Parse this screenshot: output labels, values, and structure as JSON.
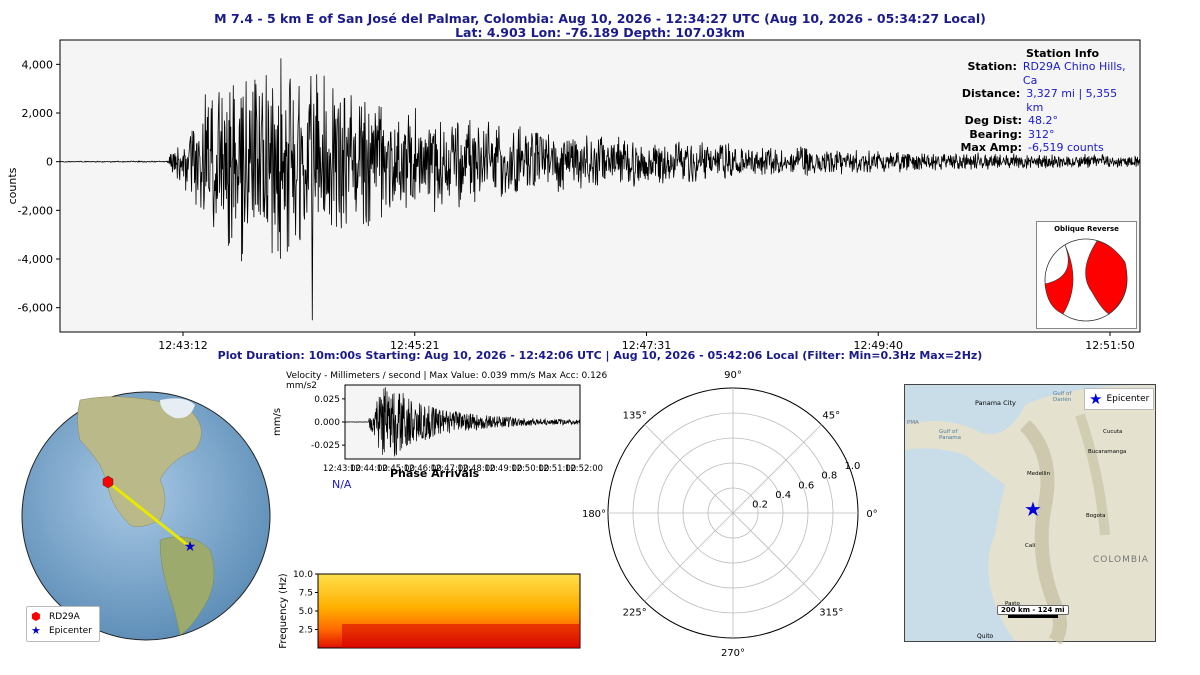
{
  "header": {
    "title_line1": "M 7.4 - 5 km E of San José del Palmar, Colombia:  Aug 10, 2026 - 12:34:27 UTC (Aug 10, 2026 - 05:34:27 Local)",
    "title_line2": "Lat: 4.903 Lon: -76.189 Depth: 107.03km"
  },
  "plot_info": "Plot Duration: 10m:00s  Starting: Aug 10, 2026 - 12:42:06 UTC | Aug 10, 2026 - 05:42:06 Local   (Filter:  Min=0.3Hz  Max=2Hz)",
  "station_info": {
    "heading": "Station Info",
    "rows": [
      {
        "label": "Station:",
        "value": "RD29A Chino Hills, Ca"
      },
      {
        "label": "Distance:",
        "value": "3,327 mi | 5,355 km"
      },
      {
        "label": "Deg Dist:",
        "value": "48.2°"
      },
      {
        "label": "Bearing:",
        "value": "312°"
      },
      {
        "label": "Max Amp:",
        "value": "-6,519 counts"
      }
    ]
  },
  "focal_mechanism": {
    "title": "Oblique Reverse",
    "fill_color": "#ff0000"
  },
  "colors": {
    "trace": "#000000",
    "title": "#1a1a8c",
    "value": "#1a1acc",
    "plot_bg": "#f5f5f5"
  },
  "chart_data": [
    {
      "type": "line",
      "title": "",
      "xlabel": "",
      "ylabel": "counts",
      "x_tick_labels": [
        "12:43:12",
        "12:45:21",
        "12:47:31",
        "12:49:40",
        "12:51:50"
      ],
      "y_tick_labels": [
        "4,000",
        "2,000",
        "0",
        "-2,000",
        "-4,000",
        "-6,000"
      ],
      "ylim": [
        -7000,
        5000
      ],
      "x_range_seconds": [
        0,
        600
      ],
      "series": [
        {
          "envelope": [
            {
              "t": 0,
              "amp": 25
            },
            {
              "t": 60,
              "amp": 30
            },
            {
              "t": 62,
              "amp": 700
            },
            {
              "t": 75,
              "amp": 2200
            },
            {
              "t": 95,
              "amp": 4600
            },
            {
              "t": 120,
              "amp": 4700
            },
            {
              "t": 150,
              "amp": 3800
            },
            {
              "t": 180,
              "amp": 2800
            },
            {
              "t": 240,
              "amp": 1800
            },
            {
              "t": 300,
              "amp": 1200
            },
            {
              "t": 360,
              "amp": 900
            },
            {
              "t": 420,
              "amp": 650
            },
            {
              "t": 480,
              "amp": 450
            },
            {
              "t": 540,
              "amp": 350
            },
            {
              "t": 600,
              "amp": 300
            }
          ],
          "min_value": -6519
        }
      ]
    },
    {
      "type": "line",
      "title": "Velocity - Millimeters / second | Max Value: 0.039 mm/s Max Acc: 0.126 mm/s2",
      "ylabel": "mm/s",
      "xlabel": "Phase Arrivals",
      "x_tick_labels": [
        "12:43:00",
        "12:44:00",
        "12:45:00",
        "12:46:00",
        "12:47:00",
        "12:48:00",
        "12:49:00",
        "12:50:00",
        "12:51:00",
        "12:52:00"
      ],
      "y_tick_labels": [
        "0.025",
        "0.000",
        "-0.025"
      ],
      "ylim": [
        -0.04,
        0.04
      ],
      "max_value": 0.039,
      "note": "N/A"
    },
    {
      "type": "heatmap",
      "ylabel": "Frequency (Hz)",
      "y_tick_labels": [
        "10.0",
        "7.5",
        "5.0",
        "2.5"
      ],
      "ylim": [
        0,
        10
      ]
    },
    {
      "type": "polar",
      "angle_labels": [
        "0°",
        "45°",
        "90°",
        "135°",
        "180°",
        "225°",
        "270°",
        "315°"
      ],
      "radial_labels": [
        "0.2",
        "0.4",
        "0.6",
        "0.8",
        "1.0"
      ],
      "rlim": [
        0,
        1.0
      ]
    }
  ],
  "globe": {
    "legend": [
      {
        "icon": "red-hexagon-icon",
        "label": "RD29A"
      },
      {
        "icon": "blue-star-icon",
        "label": "Epicenter"
      }
    ]
  },
  "region_map": {
    "legend_label": "Epicenter",
    "scale_label": "200 km - 124 mi",
    "places": [
      "Panama City",
      "Gulf of Darién",
      "Gulf of Panama",
      "Cucuta",
      "Bucaramanga",
      "Medellin",
      "Bogota",
      "Cali",
      "Pasto",
      "Quito",
      "COLOMBIA",
      "PMA"
    ]
  }
}
